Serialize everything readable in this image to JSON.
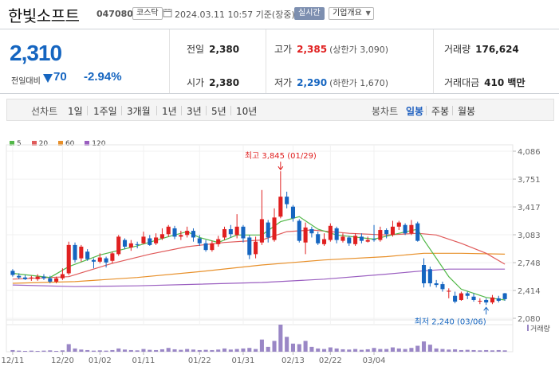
{
  "header": {
    "name": "한빛소프트",
    "code": "047080",
    "market": "코스닥",
    "timestamp": "2024.03.11 10:57 기준(장중)",
    "realtime_label": "실시간",
    "company_label": "기업개요"
  },
  "quote": {
    "price": "2,310",
    "change_label": "전일대비",
    "change": "70",
    "change_pct": "-2.94%",
    "prev_label": "전일",
    "prev": "2,380",
    "open_label": "시가",
    "open": "2,380",
    "high_label": "고가",
    "high": "2,385",
    "upper_limit": "(상한가 3,090)",
    "low_label": "저가",
    "low": "2,290",
    "lower_limit": "(하한가 1,670)",
    "volume_label": "거래량",
    "volume": "176,624",
    "amount_label": "거래대금",
    "amount": "410 백만"
  },
  "colors": {
    "up": "#e02020",
    "down": "#1565c0",
    "ma5": "#52b848",
    "ma20": "#e05a5a",
    "ma60": "#e8902a",
    "ma120": "#9a5ec0",
    "volume": "#9a87c6"
  },
  "periods": {
    "line_label": "선차트",
    "line_items": [
      "1일",
      "1주일",
      "3개월",
      "1년",
      "3년",
      "5년",
      "10년"
    ],
    "candle_label": "봉차트",
    "candle_items": [
      "일봉",
      "주봉",
      "월봉"
    ],
    "candle_active": "일봉"
  },
  "chart_data": {
    "type": "candlestick",
    "legend": [
      "5",
      "20",
      "60",
      "120"
    ],
    "y_ticks": [
      "4,086",
      "3,751",
      "3,417",
      "3,083",
      "2,748",
      "2,414",
      "2,080"
    ],
    "x_ticks": [
      "12/11",
      "12/20",
      "01/02",
      "01/11",
      "01/22",
      "01/31",
      "02/13",
      "02/22",
      "03/04"
    ],
    "volume_label": "거래량",
    "max_annotation": "최고 3,845 (01/29)",
    "min_annotation": "최저 2,240 (03/06)",
    "candles": [
      [
        2650,
        2600,
        2670,
        2580
      ],
      [
        2590,
        2570,
        2620,
        2550
      ],
      [
        2570,
        2550,
        2600,
        2540
      ],
      [
        2560,
        2570,
        2590,
        2530
      ],
      [
        2550,
        2580,
        2610,
        2530
      ],
      [
        2580,
        2560,
        2610,
        2540
      ],
      [
        2560,
        2520,
        2590,
        2500
      ],
      [
        2520,
        2560,
        2580,
        2500
      ],
      [
        2560,
        2610,
        2680,
        2540
      ],
      [
        2620,
        2960,
        3000,
        2600
      ],
      [
        2960,
        2780,
        2990,
        2750
      ],
      [
        2800,
        2940,
        2960,
        2760
      ],
      [
        2880,
        2790,
        2910,
        2770
      ],
      [
        2780,
        2760,
        2800,
        2680
      ],
      [
        2760,
        2810,
        2860,
        2740
      ],
      [
        2800,
        2750,
        2820,
        2690
      ],
      [
        2770,
        2860,
        2880,
        2740
      ],
      [
        2850,
        3060,
        3080,
        2830
      ],
      [
        3020,
        2940,
        3040,
        2910
      ],
      [
        2930,
        2980,
        3020,
        2890
      ],
      [
        2970,
        2960,
        3000,
        2920
      ],
      [
        2980,
        3060,
        3120,
        2970
      ],
      [
        3040,
        2960,
        3080,
        2950
      ],
      [
        2980,
        3050,
        3100,
        2960
      ],
      [
        3040,
        3090,
        3160,
        3020
      ],
      [
        3090,
        3180,
        3200,
        3060
      ],
      [
        3160,
        3060,
        3190,
        3030
      ],
      [
        3060,
        3080,
        3130,
        3020
      ],
      [
        3080,
        3130,
        3180,
        3050
      ],
      [
        3130,
        3050,
        3160,
        3000
      ],
      [
        3040,
        2980,
        3080,
        2950
      ],
      [
        2980,
        2900,
        3020,
        2880
      ],
      [
        2900,
        2980,
        3010,
        2880
      ],
      [
        2970,
        3030,
        3070,
        2940
      ],
      [
        3050,
        3150,
        3180,
        3020
      ],
      [
        3150,
        3090,
        3200,
        3050
      ],
      [
        3080,
        3180,
        3330,
        3040
      ],
      [
        3180,
        3040,
        3200,
        2990
      ],
      [
        3050,
        2840,
        3080,
        2790
      ],
      [
        2850,
        3000,
        3060,
        2800
      ],
      [
        2990,
        3270,
        3620,
        2960
      ],
      [
        3230,
        3050,
        3260,
        2990
      ],
      [
        3020,
        3290,
        3400,
        3000
      ],
      [
        3300,
        3540,
        3845,
        3280
      ],
      [
        3540,
        3450,
        3600,
        3400
      ],
      [
        3420,
        3280,
        3440,
        3240
      ],
      [
        3250,
        3010,
        3270,
        2990
      ],
      [
        2990,
        3170,
        3230,
        2850
      ],
      [
        3150,
        3100,
        3180,
        3050
      ],
      [
        3090,
        2980,
        3120,
        2960
      ],
      [
        2970,
        3030,
        3100,
        2950
      ],
      [
        3020,
        3190,
        3220,
        3000
      ],
      [
        3160,
        3020,
        3180,
        2980
      ],
      [
        3010,
        3060,
        3100,
        2990
      ],
      [
        3050,
        2980,
        3070,
        2950
      ],
      [
        2970,
        3070,
        3100,
        2950
      ],
      [
        3060,
        3010,
        3100,
        2980
      ],
      [
        3000,
        3020,
        3060,
        2990
      ],
      [
        3030,
        3020,
        3200,
        3000
      ],
      [
        3020,
        3140,
        3180,
        3000
      ],
      [
        3140,
        3090,
        3160,
        3040
      ],
      [
        3080,
        3180,
        3250,
        3060
      ],
      [
        3180,
        3230,
        3250,
        3140
      ],
      [
        3200,
        3100,
        3220,
        3080
      ],
      [
        3100,
        3200,
        3260,
        3080
      ],
      [
        3220,
        3010,
        3240,
        3000
      ],
      [
        2720,
        2500,
        2800,
        2450
      ],
      [
        2670,
        2500,
        2700,
        2460
      ],
      [
        2500,
        2480,
        2540,
        2450
      ],
      [
        2490,
        2430,
        2520,
        2400
      ],
      [
        2400,
        2410,
        2440,
        2320
      ],
      [
        2350,
        2280,
        2400,
        2260
      ],
      [
        2300,
        2380,
        2400,
        2290
      ],
      [
        2380,
        2350,
        2400,
        2310
      ],
      [
        2340,
        2300,
        2380,
        2280
      ],
      [
        2290,
        2290,
        2320,
        2250
      ],
      [
        2300,
        2270,
        2320,
        2240
      ],
      [
        2270,
        2330,
        2360,
        2250
      ],
      [
        2320,
        2290,
        2350,
        2270
      ],
      [
        2380,
        2310,
        2385,
        2290
      ]
    ],
    "ma5": [
      [
        0,
        2620
      ],
      [
        6,
        2570
      ],
      [
        9,
        2700
      ],
      [
        14,
        2840
      ],
      [
        20,
        2950
      ],
      [
        25,
        3060
      ],
      [
        28,
        3120
      ],
      [
        30,
        3050
      ],
      [
        33,
        2990
      ],
      [
        36,
        3080
      ],
      [
        40,
        3080
      ],
      [
        43,
        3240
      ],
      [
        46,
        3300
      ],
      [
        49,
        3150
      ],
      [
        52,
        3080
      ],
      [
        58,
        3030
      ],
      [
        62,
        3100
      ],
      [
        65,
        3150
      ],
      [
        66,
        3020
      ],
      [
        68,
        2800
      ],
      [
        70,
        2580
      ],
      [
        72,
        2430
      ],
      [
        74,
        2380
      ],
      [
        76,
        2330
      ],
      [
        79,
        2300
      ]
    ],
    "ma20": [
      [
        0,
        2550
      ],
      [
        9,
        2580
      ],
      [
        16,
        2740
      ],
      [
        22,
        2850
      ],
      [
        28,
        2940
      ],
      [
        34,
        2990
      ],
      [
        40,
        3020
      ],
      [
        44,
        3120
      ],
      [
        48,
        3140
      ],
      [
        54,
        3100
      ],
      [
        60,
        3080
      ],
      [
        65,
        3100
      ],
      [
        68,
        3080
      ],
      [
        72,
        2980
      ],
      [
        76,
        2860
      ],
      [
        79,
        2730
      ]
    ],
    "ma60": [
      [
        0,
        2500
      ],
      [
        10,
        2520
      ],
      [
        20,
        2570
      ],
      [
        30,
        2640
      ],
      [
        40,
        2720
      ],
      [
        50,
        2780
      ],
      [
        60,
        2820
      ],
      [
        66,
        2860
      ],
      [
        72,
        2860
      ],
      [
        79,
        2850
      ]
    ],
    "ma120": [
      [
        0,
        2480
      ],
      [
        10,
        2460
      ],
      [
        20,
        2470
      ],
      [
        30,
        2490
      ],
      [
        40,
        2510
      ],
      [
        50,
        2550
      ],
      [
        60,
        2610
      ],
      [
        66,
        2650
      ],
      [
        70,
        2670
      ],
      [
        79,
        2670
      ]
    ],
    "volume": [
      6,
      4,
      3,
      4,
      3,
      4,
      5,
      3,
      5,
      28,
      12,
      8,
      6,
      4,
      5,
      4,
      6,
      12,
      8,
      6,
      5,
      10,
      7,
      6,
      9,
      14,
      9,
      7,
      10,
      8,
      6,
      7,
      6,
      8,
      12,
      8,
      10,
      12,
      14,
      10,
      45,
      18,
      40,
      100,
      55,
      30,
      28,
      40,
      18,
      12,
      10,
      16,
      12,
      9,
      8,
      10,
      7,
      9,
      14,
      10,
      10,
      16,
      12,
      10,
      14,
      22,
      38,
      26,
      12,
      10,
      8,
      9,
      6,
      7,
      6,
      5,
      6,
      5,
      6,
      5
    ]
  }
}
